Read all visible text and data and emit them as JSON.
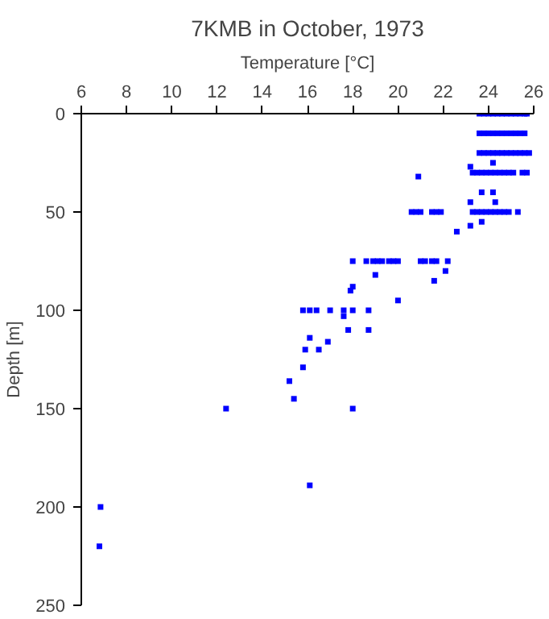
{
  "chart_data": {
    "type": "scatter",
    "title": "7KMB in October, 1973",
    "xlabel": "Temperature [°C]",
    "ylabel": "Depth [m]",
    "xlim": [
      6,
      26
    ],
    "ylim": [
      250,
      0
    ],
    "xticks": [
      6,
      8,
      10,
      12,
      14,
      16,
      18,
      20,
      22,
      24,
      26
    ],
    "yticks": [
      0,
      50,
      100,
      150,
      200,
      250
    ],
    "grid": false,
    "marker": "square",
    "series": [
      {
        "color": "#0000ff",
        "x": [
          23.6,
          23.8,
          24.0,
          24.2,
          24.4,
          24.6,
          24.8,
          25.0,
          25.2,
          25.4,
          25.6,
          25.7,
          23.6,
          23.8,
          24.0,
          24.2,
          24.4,
          24.6,
          24.8,
          25.0,
          25.2,
          25.4,
          25.6,
          23.6,
          23.8,
          24.0,
          24.2,
          24.4,
          24.6,
          24.8,
          25.0,
          25.2,
          25.4,
          25.6,
          25.8,
          23.3,
          23.5,
          23.7,
          23.9,
          24.1,
          24.3,
          24.5,
          24.7,
          24.9,
          25.1,
          25.5,
          25.7,
          24.2,
          23.2,
          20.9,
          23.7,
          24.2,
          23.2,
          24.3,
          20.6,
          20.8,
          21.0,
          21.5,
          21.7,
          21.9,
          23.3,
          23.5,
          23.7,
          23.9,
          24.1,
          24.3,
          24.5,
          24.7,
          24.9,
          25.3,
          23.7,
          23.2,
          22.6,
          18.0,
          18.6,
          18.9,
          19.1,
          19.3,
          19.6,
          19.8,
          20.0,
          21.0,
          21.2,
          21.5,
          21.7,
          22.2,
          22.1,
          19.0,
          21.6,
          18.0,
          17.9,
          20.0,
          15.8,
          16.1,
          16.4,
          17.0,
          17.6,
          18.0,
          18.7,
          17.6,
          17.8,
          18.7,
          16.1,
          16.9,
          15.9,
          16.5,
          15.8,
          15.2,
          15.4,
          12.4,
          18.0,
          16.1,
          6.85,
          6.8
        ],
        "values": [
          0,
          0,
          0,
          0,
          0,
          0,
          0,
          0,
          0,
          0,
          0,
          0,
          10,
          10,
          10,
          10,
          10,
          10,
          10,
          10,
          10,
          10,
          10,
          20,
          20,
          20,
          20,
          20,
          20,
          20,
          20,
          20,
          20,
          20,
          20,
          30,
          30,
          30,
          30,
          30,
          30,
          30,
          30,
          30,
          30,
          30,
          30,
          25,
          27,
          32,
          40,
          40,
          45,
          45,
          50,
          50,
          50,
          50,
          50,
          50,
          50,
          50,
          50,
          50,
          50,
          50,
          50,
          50,
          50,
          50,
          55,
          57,
          60,
          75,
          75,
          75,
          75,
          75,
          75,
          75,
          75,
          75,
          75,
          75,
          75,
          75,
          80,
          82,
          85,
          88,
          90,
          95,
          100,
          100,
          100,
          100,
          100,
          100,
          100,
          103,
          110,
          110,
          114,
          116,
          120,
          120,
          129,
          136,
          145,
          150,
          150,
          189,
          200,
          220
        ]
      }
    ]
  }
}
